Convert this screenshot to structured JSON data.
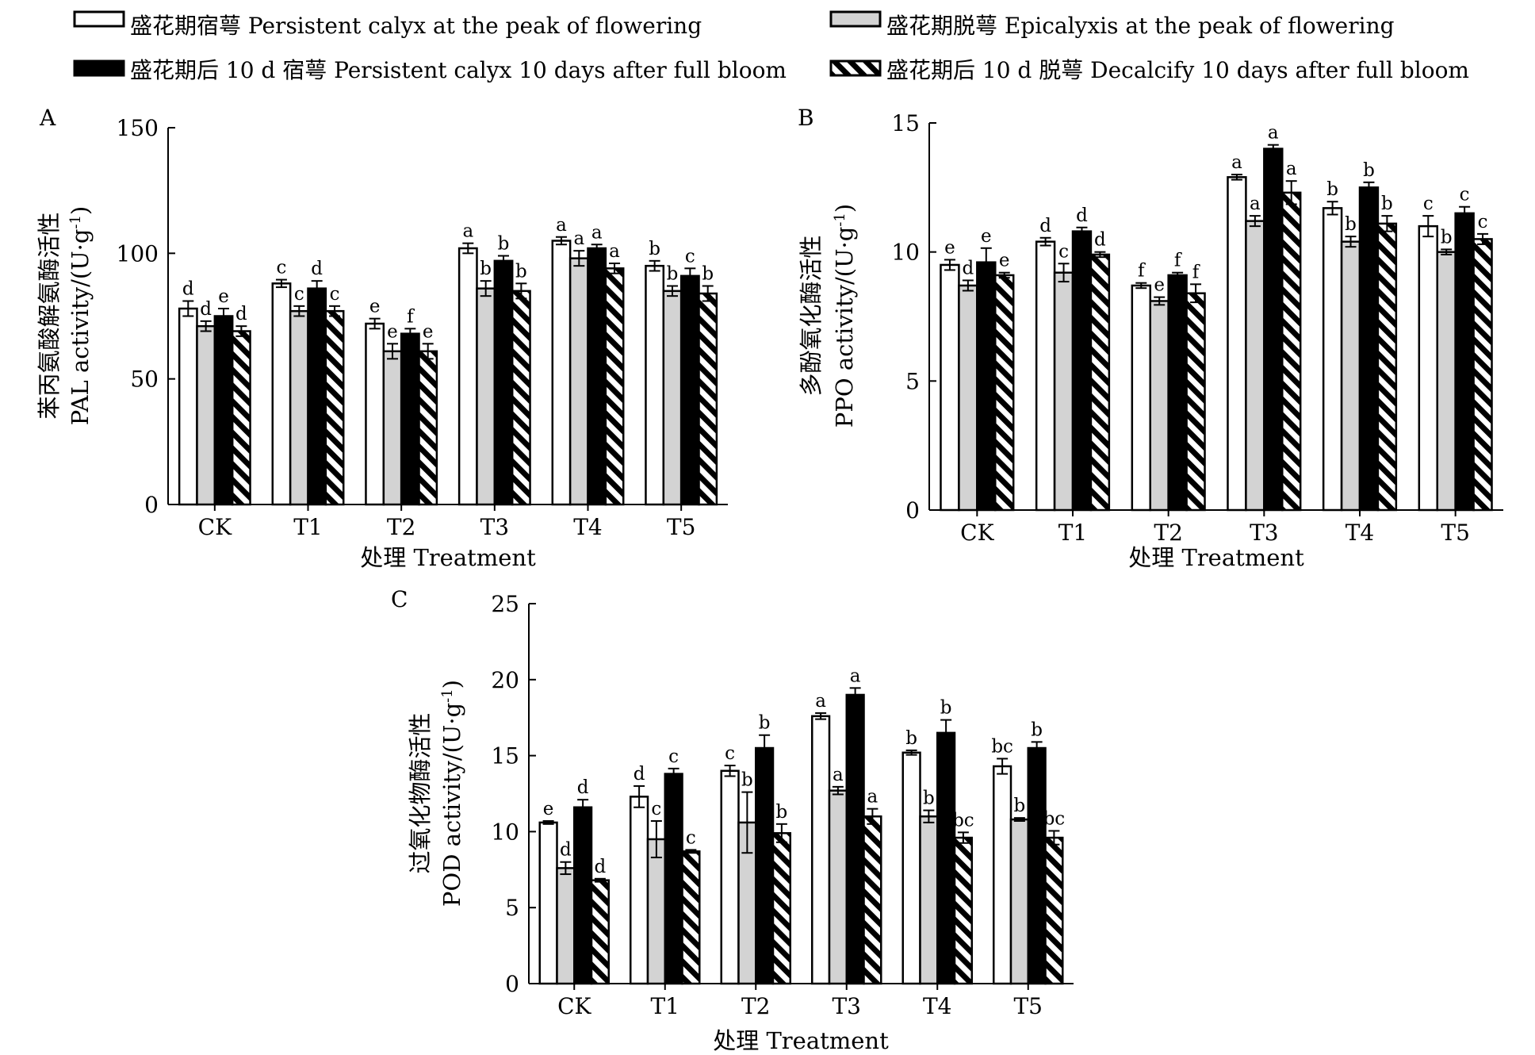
{
  "legend": [
    {
      "label": "盛花期宿萼 Persistent calyx at the peak of flowering",
      "fill": "white"
    },
    {
      "label": "盛花期脱萼 Epicalyxis at the peak of flowering",
      "fill": "gray"
    },
    {
      "label": "盛花期后 10 d 宿萼 Persistent calyx 10 days after full bloom",
      "fill": "black"
    },
    {
      "label": "盛花期后 10 d 脱萼 Decalcify 10 days after full bloom",
      "fill": "hatch"
    }
  ],
  "colors": {
    "white": "#ffffff",
    "gray": "#d3d3d3",
    "black": "#000000"
  },
  "chart_data": [
    {
      "panel": "A",
      "type": "bar",
      "categories": [
        "CK",
        "T1",
        "T2",
        "T3",
        "T4",
        "T5"
      ],
      "xlabel": "处理 Treatment",
      "ylabel_cn": "苯丙氨酸解氨酶活性",
      "ylabel_en": "PAL activity/(U·g",
      "ylabel_sup": "-1",
      "ylabel_close": ")",
      "ylim": [
        0,
        150
      ],
      "yticks": [
        0,
        50,
        100,
        150
      ],
      "series": [
        {
          "values": [
            78,
            88,
            72,
            102,
            105,
            95
          ],
          "errors": [
            3,
            1.5,
            2,
            2,
            1.5,
            2
          ],
          "letters": [
            "d",
            "c",
            "e",
            "a",
            "a",
            "b"
          ]
        },
        {
          "values": [
            71,
            77,
            61,
            86,
            98,
            85
          ],
          "errors": [
            2,
            2,
            3,
            3,
            3,
            2
          ],
          "letters": [
            "d",
            "c",
            "e",
            "b",
            "a",
            "b"
          ]
        },
        {
          "values": [
            75,
            86,
            68,
            97,
            102,
            91
          ],
          "errors": [
            3,
            3,
            2,
            2,
            1.5,
            3
          ],
          "letters": [
            "e",
            "d",
            "f",
            "b",
            "a",
            "c"
          ]
        },
        {
          "values": [
            69,
            77,
            61,
            85,
            94,
            84
          ],
          "errors": [
            2,
            2,
            3,
            3,
            2,
            3
          ],
          "letters": [
            "d",
            "c",
            "e",
            "b",
            "a",
            "b"
          ]
        }
      ]
    },
    {
      "panel": "B",
      "type": "bar",
      "categories": [
        "CK",
        "T1",
        "T2",
        "T3",
        "T4",
        "T5"
      ],
      "xlabel": "处理 Treatment",
      "ylabel_cn": "多酚氧化酶活性",
      "ylabel_en": "PPO activity/(U·g",
      "ylabel_sup": "-1",
      "ylabel_close": ")",
      "ylim": [
        0,
        15
      ],
      "yticks": [
        0,
        5,
        10,
        15
      ],
      "series": [
        {
          "values": [
            9.5,
            10.4,
            8.7,
            12.9,
            11.7,
            11.0
          ],
          "errors": [
            0.2,
            0.15,
            0.1,
            0.1,
            0.25,
            0.4
          ],
          "letters": [
            "e",
            "d",
            "f",
            "a",
            "b",
            "c"
          ]
        },
        {
          "values": [
            8.7,
            9.2,
            8.1,
            11.2,
            10.4,
            10.0
          ],
          "errors": [
            0.2,
            0.35,
            0.15,
            0.2,
            0.2,
            0.1
          ],
          "letters": [
            "d",
            "c",
            "e",
            "a",
            "b",
            "b"
          ]
        },
        {
          "values": [
            9.6,
            10.8,
            9.1,
            14.0,
            12.5,
            11.5
          ],
          "errors": [
            0.55,
            0.15,
            0.1,
            0.15,
            0.2,
            0.25
          ],
          "letters": [
            "e",
            "d",
            "f",
            "a",
            "b",
            "c"
          ]
        },
        {
          "values": [
            9.1,
            9.9,
            8.4,
            12.3,
            11.1,
            10.5
          ],
          "errors": [
            0.1,
            0.1,
            0.35,
            0.45,
            0.3,
            0.2
          ],
          "letters": [
            "e",
            "d",
            "f",
            "a",
            "b",
            "c"
          ]
        }
      ]
    },
    {
      "panel": "C",
      "type": "bar",
      "categories": [
        "CK",
        "T1",
        "T2",
        "T3",
        "T4",
        "T5"
      ],
      "xlabel": "处理 Treatment",
      "ylabel_cn": "过氧化物酶活性",
      "ylabel_en": "POD activity/(U·g",
      "ylabel_sup": "-1",
      "ylabel_close": ")",
      "ylim": [
        0,
        25
      ],
      "yticks": [
        0,
        5,
        10,
        15,
        20,
        25
      ],
      "series": [
        {
          "values": [
            10.6,
            12.3,
            14.0,
            17.6,
            15.2,
            14.3
          ],
          "errors": [
            0.1,
            0.7,
            0.35,
            0.2,
            0.15,
            0.5
          ],
          "letters": [
            "e",
            "d",
            "c",
            "a",
            "b",
            "bc"
          ]
        },
        {
          "values": [
            7.6,
            9.5,
            10.6,
            12.7,
            11.0,
            10.8
          ],
          "errors": [
            0.4,
            1.2,
            2.0,
            0.25,
            0.4,
            0.1
          ],
          "letters": [
            "d",
            "c",
            "b",
            "a",
            "b",
            "b"
          ]
        },
        {
          "values": [
            11.6,
            13.8,
            15.5,
            19.0,
            16.5,
            15.5
          ],
          "errors": [
            0.5,
            0.35,
            0.85,
            0.45,
            0.85,
            0.4
          ],
          "letters": [
            "d",
            "c",
            "b",
            "a",
            "b",
            "b"
          ]
        },
        {
          "values": [
            6.8,
            8.7,
            9.9,
            11.0,
            9.6,
            9.6
          ],
          "errors": [
            0.1,
            0.1,
            0.6,
            0.5,
            0.35,
            0.45
          ],
          "letters": [
            "d",
            "c",
            "b",
            "a",
            "bc",
            "bc"
          ]
        }
      ]
    }
  ]
}
